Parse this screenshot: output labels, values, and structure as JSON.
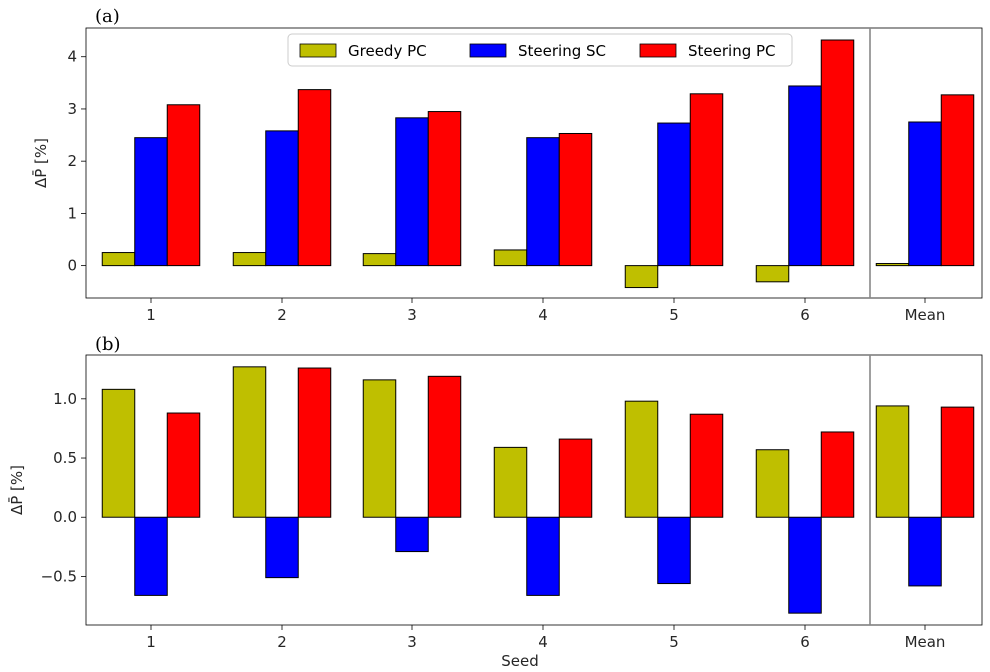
{
  "chart_data": [
    {
      "type": "bar",
      "panel_label": "(a)",
      "categories": [
        "1",
        "2",
        "3",
        "4",
        "5",
        "6",
        "Mean"
      ],
      "series": [
        {
          "name": "Greedy PC",
          "color": "#bfbf00",
          "values": [
            0.25,
            0.25,
            0.23,
            0.3,
            -0.42,
            -0.31,
            0.04
          ]
        },
        {
          "name": "Steering SC",
          "color": "#0000ff",
          "values": [
            2.45,
            2.58,
            2.83,
            2.45,
            2.73,
            3.44,
            2.75
          ]
        },
        {
          "name": "Steering PC",
          "color": "#ff0000",
          "values": [
            3.08,
            3.37,
            2.95,
            2.53,
            3.29,
            4.32,
            3.27
          ]
        }
      ],
      "ylabel": "ΔP̄ [%]",
      "xlabel": "",
      "ylim": [
        -0.62,
        4.55
      ],
      "yticks": [
        "0",
        "1",
        "2",
        "3",
        "4"
      ],
      "legend": "top-center",
      "grid": false
    },
    {
      "type": "bar",
      "panel_label": "(b)",
      "categories": [
        "1",
        "2",
        "3",
        "4",
        "5",
        "6",
        "Mean"
      ],
      "series": [
        {
          "name": "Greedy PC",
          "color": "#bfbf00",
          "values": [
            1.08,
            1.27,
            1.16,
            0.59,
            0.98,
            0.57,
            0.94
          ]
        },
        {
          "name": "Steering SC",
          "color": "#0000ff",
          "values": [
            -0.66,
            -0.51,
            -0.29,
            -0.66,
            -0.56,
            -0.81,
            -0.58
          ]
        },
        {
          "name": "Steering PC",
          "color": "#ff0000",
          "values": [
            0.88,
            1.26,
            1.19,
            0.66,
            0.87,
            0.72,
            0.93
          ]
        }
      ],
      "ylabel": "ΔP̄ [%]",
      "xlabel": "Seed",
      "ylim": [
        -0.91,
        1.37
      ],
      "yticks": [
        "−0.5",
        "0.0",
        "0.5",
        "1.0"
      ],
      "legend": "none",
      "grid": false
    }
  ]
}
